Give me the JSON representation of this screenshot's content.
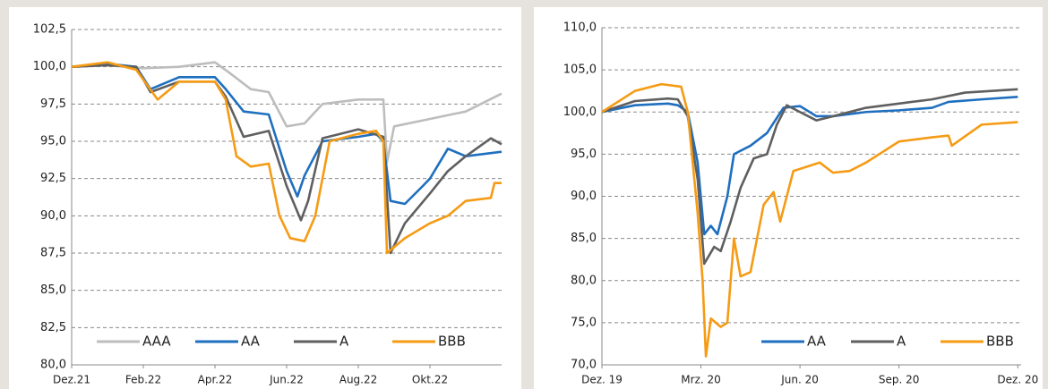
{
  "chart_data": [
    {
      "type": "line",
      "xlim": [
        0,
        12
      ],
      "xticks": [
        {
          "value": 0,
          "label": "Dez.21"
        },
        {
          "value": 2,
          "label": "Feb.22"
        },
        {
          "value": 4,
          "label": "Apr.22"
        },
        {
          "value": 6,
          "label": "Jun.22"
        },
        {
          "value": 8,
          "label": "Aug.22"
        },
        {
          "value": 10,
          "label": "Okt.22"
        }
      ],
      "ylim": [
        80,
        102.5
      ],
      "yticks": [
        {
          "value": 80,
          "label": "80,0"
        },
        {
          "value": 82.5,
          "label": "82,5"
        },
        {
          "value": 85,
          "label": "85,0"
        },
        {
          "value": 87.5,
          "label": "87,5"
        },
        {
          "value": 90,
          "label": "90,0"
        },
        {
          "value": 92.5,
          "label": "92,5"
        },
        {
          "value": 95,
          "label": "95,0"
        },
        {
          "value": 97.5,
          "label": "97,5"
        },
        {
          "value": 100,
          "label": "100,0"
        },
        {
          "value": 102.5,
          "label": "102,5"
        }
      ],
      "grid": true,
      "legend": "lower center",
      "series": [
        {
          "name": "AAA",
          "color": "#bdbdbd",
          "x": [
            0,
            1,
            2,
            3,
            4,
            4.4,
            5,
            5.5,
            6,
            6.5,
            7,
            8,
            8.7,
            8.8,
            9,
            10,
            11,
            12
          ],
          "values": [
            100,
            100.1,
            99.9,
            100,
            100.3,
            99.6,
            98.5,
            98.3,
            96,
            96.2,
            97.5,
            97.8,
            97.8,
            93.6,
            96,
            96.5,
            97,
            98.2
          ]
        },
        {
          "name": "AA",
          "color": "#1f6fbf",
          "x": [
            0,
            1,
            1.8,
            2.2,
            3,
            4,
            4.3,
            4.8,
            5.5,
            6,
            6.3,
            6.5,
            7,
            8,
            8.5,
            8.7,
            8.9,
            9.3,
            9.8,
            10,
            10.5,
            11,
            12
          ],
          "values": [
            100,
            100.2,
            100,
            98.5,
            99.3,
            99.3,
            98.5,
            97,
            96.8,
            93,
            91.3,
            92.7,
            95,
            95.3,
            95.5,
            95,
            91,
            90.8,
            92,
            92.5,
            94.5,
            94,
            94.3
          ]
        },
        {
          "name": "A",
          "color": "#5f5f5f",
          "x": [
            0,
            1,
            1.8,
            2.2,
            3,
            4,
            4.3,
            4.8,
            5.5,
            6,
            6.4,
            6.6,
            7,
            8,
            8.7,
            8.9,
            9.3,
            10,
            10.5,
            11,
            11.7,
            12
          ],
          "values": [
            100,
            100.1,
            100,
            98.3,
            99,
            99,
            98,
            95.3,
            95.7,
            92,
            89.7,
            91,
            95.2,
            95.8,
            95.3,
            87.5,
            89.5,
            91.5,
            93,
            94,
            95.2,
            94.8
          ]
        },
        {
          "name": "BBB",
          "color": "#f59b14",
          "x": [
            0,
            1,
            1.8,
            2.4,
            3,
            4,
            4.3,
            4.6,
            5,
            5.5,
            5.8,
            6.1,
            6.5,
            6.8,
            7.2,
            8,
            8.5,
            8.7,
            8.8,
            9.3,
            10,
            10.5,
            11,
            11.7,
            11.8,
            12
          ],
          "values": [
            100,
            100.3,
            99.8,
            97.8,
            99,
            99,
            97.8,
            94,
            93.3,
            93.5,
            90,
            88.5,
            88.3,
            90,
            95,
            95.5,
            95.7,
            95,
            87.5,
            88.5,
            89.5,
            90,
            91,
            91.2,
            92.2,
            92.2
          ]
        }
      ]
    },
    {
      "type": "line",
      "xlim": [
        0,
        12.7
      ],
      "xticks": [
        {
          "value": 0,
          "label": "Dez. 19"
        },
        {
          "value": 3,
          "label": "Mrz. 20"
        },
        {
          "value": 6,
          "label": "Jun. 20"
        },
        {
          "value": 9,
          "label": "Sep. 20"
        },
        {
          "value": 12.6,
          "label": "Dez. 20"
        }
      ],
      "ylim": [
        70,
        110
      ],
      "yticks": [
        {
          "value": 70,
          "label": "70,0"
        },
        {
          "value": 75,
          "label": "75,0"
        },
        {
          "value": 80,
          "label": "80,0"
        },
        {
          "value": 85,
          "label": "85,0"
        },
        {
          "value": 90,
          "label": "90,0"
        },
        {
          "value": 95,
          "label": "95,0"
        },
        {
          "value": 100,
          "label": "100,0"
        },
        {
          "value": 105,
          "label": "105,0"
        },
        {
          "value": 110,
          "label": "110,0"
        }
      ],
      "grid": true,
      "legend": "lower right",
      "series": [
        {
          "name": "AA",
          "color": "#1f6fbf",
          "x": [
            0,
            1,
            2,
            2.3,
            2.6,
            2.9,
            3.1,
            3.3,
            3.5,
            3.8,
            4,
            4.5,
            5,
            5.5,
            6,
            6.5,
            7,
            8,
            9,
            10,
            10.5,
            11.5,
            12.6
          ],
          "values": [
            100,
            100.8,
            101,
            100.8,
            100,
            94,
            85.5,
            86.5,
            85.5,
            90,
            95,
            96,
            97.5,
            100.5,
            100.7,
            99.5,
            99.5,
            100,
            100.2,
            100.5,
            101.2,
            101.5,
            101.8
          ]
        },
        {
          "name": "A",
          "color": "#5f5f5f",
          "x": [
            0,
            1,
            2,
            2.3,
            2.6,
            2.9,
            3.1,
            3.4,
            3.6,
            3.9,
            4.2,
            4.6,
            5,
            5.3,
            5.6,
            6,
            6.5,
            7,
            8,
            9,
            10,
            11,
            12.6
          ],
          "values": [
            100,
            101.3,
            101.6,
            101.5,
            99.5,
            92,
            82,
            84,
            83.5,
            87,
            91,
            94.5,
            95,
            98.5,
            100.8,
            100,
            99,
            99.5,
            100.5,
            101,
            101.5,
            102.3,
            102.7
          ]
        },
        {
          "name": "BBB",
          "color": "#f59b14",
          "x": [
            0,
            1,
            1.8,
            2.4,
            2.6,
            2.9,
            3.05,
            3.15,
            3.3,
            3.6,
            3.8,
            4,
            4.2,
            4.5,
            4.9,
            5.2,
            5.4,
            5.8,
            6.2,
            6.6,
            7,
            7.5,
            8,
            9,
            10,
            10.5,
            10.6,
            11.5,
            12.6
          ],
          "values": [
            100,
            102.5,
            103.3,
            103,
            100,
            88,
            80,
            71,
            75.5,
            74.5,
            75,
            85,
            80.5,
            81,
            89,
            90.5,
            87,
            93,
            93.5,
            94,
            92.8,
            93,
            94,
            96.5,
            97,
            97.2,
            96,
            98.5,
            98.8
          ]
        }
      ]
    }
  ]
}
